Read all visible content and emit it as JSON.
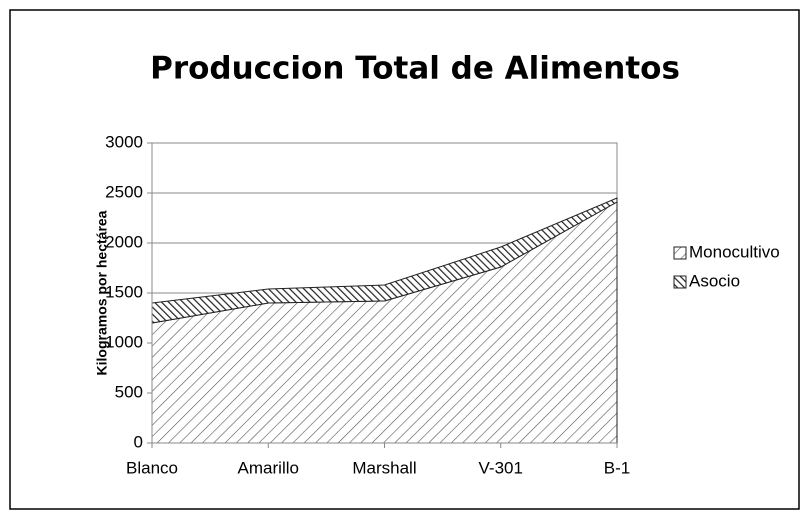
{
  "chart_data": {
    "type": "area",
    "stacked": true,
    "title": "Produccion Total de Alimentos",
    "ylabel": "Kilogramos por hectárea",
    "categories": [
      "Blanco",
      "Amarillo",
      "Marshall",
      "V-301",
      "B-1"
    ],
    "series": [
      {
        "name": "Monocultivo",
        "color": "#555555",
        "values": [
          1200,
          1400,
          1420,
          1760,
          2410
        ]
      },
      {
        "name": "Asocio",
        "color": "#222222",
        "values": [
          200,
          140,
          160,
          200,
          40
        ]
      }
    ],
    "ylim": [
      0,
      3000
    ],
    "yticks": [
      0,
      500,
      1000,
      1500,
      2000,
      2500,
      3000
    ],
    "grid": true,
    "legend": "right"
  }
}
